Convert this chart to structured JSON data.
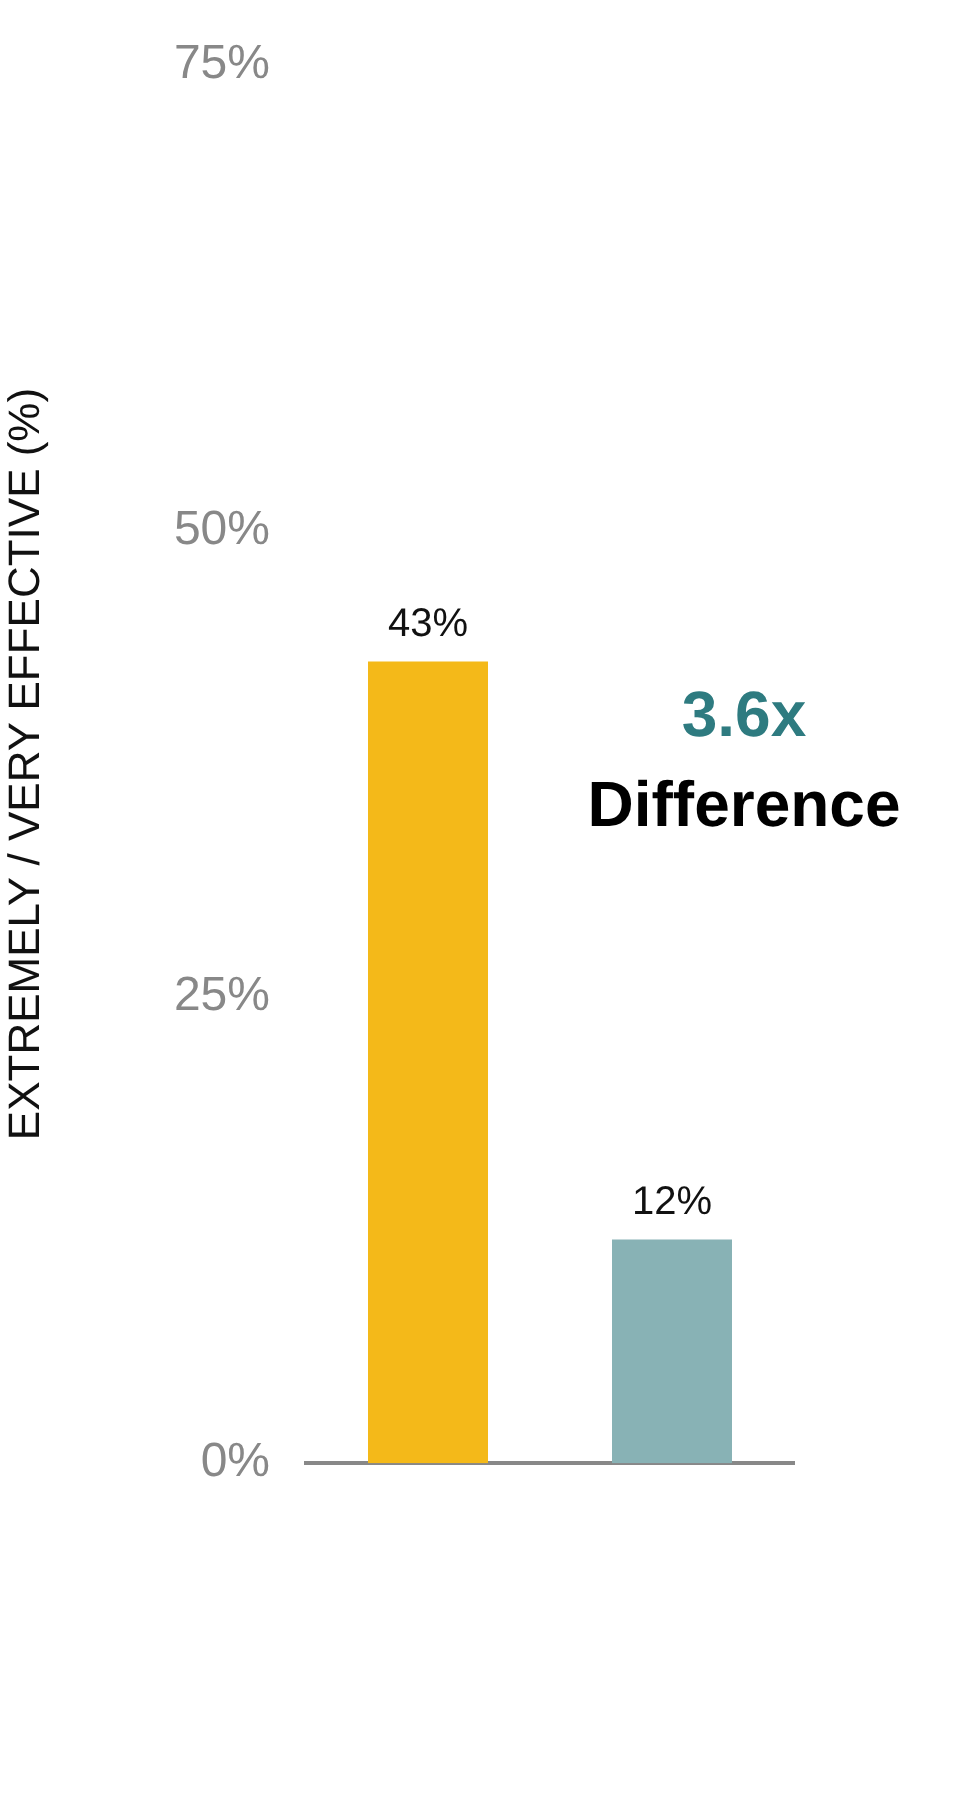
{
  "chart_data": {
    "type": "bar",
    "ylabel": "EXTREMELY / VERY EFFECTIVE (%)",
    "categories": [
      null,
      null
    ],
    "values": [
      43,
      12
    ],
    "colors": [
      "#f4b919",
      "#88b2b5"
    ],
    "value_labels": [
      "43%",
      "12%"
    ],
    "ylim": [
      0,
      75
    ],
    "yticks": [
      {
        "value": 0,
        "label": "0%"
      },
      {
        "value": 25,
        "label": "25%"
      },
      {
        "value": 50,
        "label": "50%"
      },
      {
        "value": 75,
        "label": "75%"
      }
    ],
    "grid": false,
    "legend": false,
    "annotations": [
      "3.6x",
      "Difference"
    ]
  }
}
